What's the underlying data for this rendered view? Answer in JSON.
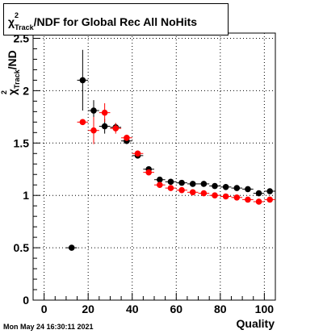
{
  "title": {
    "chi": "χ",
    "superscript": "2",
    "subscript": "Track",
    "rest": "/NDF for Global Rec All NoHits"
  },
  "timestamp": "Mon May 24 16:30:11 2021",
  "chart_data": {
    "type": "scatter",
    "title": "χ²_Track/NDF for Global Rec All NoHits",
    "xlabel": "Quality",
    "ylabel": "χ²_Track/NDF",
    "xlim": [
      -5,
      105
    ],
    "ylim": [
      0,
      2.55
    ],
    "x_ticks": [
      0,
      20,
      40,
      60,
      80,
      100
    ],
    "y_ticks": [
      0,
      0.5,
      1,
      1.5,
      2,
      2.5
    ],
    "x_tick_labels": [
      "0",
      "20",
      "40",
      "60",
      "80",
      "100"
    ],
    "y_tick_labels": [
      "0",
      "0.5",
      "1",
      "1.5",
      "2",
      "2.5"
    ],
    "grid": true,
    "series": [
      {
        "color": "#000000",
        "points": [
          {
            "x": 12.5,
            "y": 0.5,
            "yerr": 0.0
          },
          {
            "x": 17.5,
            "y": 2.1,
            "yerr": 0.29
          },
          {
            "x": 22.5,
            "y": 1.81,
            "yerr": 0.1
          },
          {
            "x": 27.5,
            "y": 1.66,
            "yerr": 0.07
          },
          {
            "x": 32.5,
            "y": 1.65,
            "yerr": 0.04
          },
          {
            "x": 37.5,
            "y": 1.52,
            "yerr": 0.03
          },
          {
            "x": 42.5,
            "y": 1.38,
            "yerr": 0.02
          },
          {
            "x": 47.5,
            "y": 1.25,
            "yerr": 0.015
          },
          {
            "x": 52.5,
            "y": 1.15,
            "yerr": 0.01
          },
          {
            "x": 57.5,
            "y": 1.13,
            "yerr": 0.01
          },
          {
            "x": 62.5,
            "y": 1.12,
            "yerr": 0.01
          },
          {
            "x": 67.5,
            "y": 1.11,
            "yerr": 0.01
          },
          {
            "x": 72.5,
            "y": 1.11,
            "yerr": 0.01
          },
          {
            "x": 77.5,
            "y": 1.09,
            "yerr": 0.01
          },
          {
            "x": 82.5,
            "y": 1.08,
            "yerr": 0.01
          },
          {
            "x": 87.5,
            "y": 1.07,
            "yerr": 0.01
          },
          {
            "x": 92.5,
            "y": 1.06,
            "yerr": 0.01
          },
          {
            "x": 97.5,
            "y": 1.02,
            "yerr": 0.01
          },
          {
            "x": 102.5,
            "y": 1.04,
            "yerr": 0.01
          }
        ]
      },
      {
        "color": "#ff0000",
        "points": [
          {
            "x": 17.5,
            "y": 1.7,
            "yerr": 0.0
          },
          {
            "x": 22.5,
            "y": 1.62,
            "yerr": 0.13
          },
          {
            "x": 27.5,
            "y": 1.79,
            "yerr": 0.09
          },
          {
            "x": 32.5,
            "y": 1.64,
            "yerr": 0.05
          },
          {
            "x": 37.5,
            "y": 1.55,
            "yerr": 0.03
          },
          {
            "x": 42.5,
            "y": 1.4,
            "yerr": 0.02
          },
          {
            "x": 47.5,
            "y": 1.22,
            "yerr": 0.015
          },
          {
            "x": 52.5,
            "y": 1.1,
            "yerr": 0.01
          },
          {
            "x": 57.5,
            "y": 1.07,
            "yerr": 0.01
          },
          {
            "x": 62.5,
            "y": 1.05,
            "yerr": 0.01
          },
          {
            "x": 67.5,
            "y": 1.03,
            "yerr": 0.01
          },
          {
            "x": 72.5,
            "y": 1.02,
            "yerr": 0.01
          },
          {
            "x": 77.5,
            "y": 1.0,
            "yerr": 0.01
          },
          {
            "x": 82.5,
            "y": 0.99,
            "yerr": 0.01
          },
          {
            "x": 87.5,
            "y": 0.98,
            "yerr": 0.01
          },
          {
            "x": 92.5,
            "y": 0.96,
            "yerr": 0.01
          },
          {
            "x": 97.5,
            "y": 0.94,
            "yerr": 0.01
          },
          {
            "x": 102.5,
            "y": 0.96,
            "yerr": 0.01
          }
        ]
      }
    ]
  }
}
